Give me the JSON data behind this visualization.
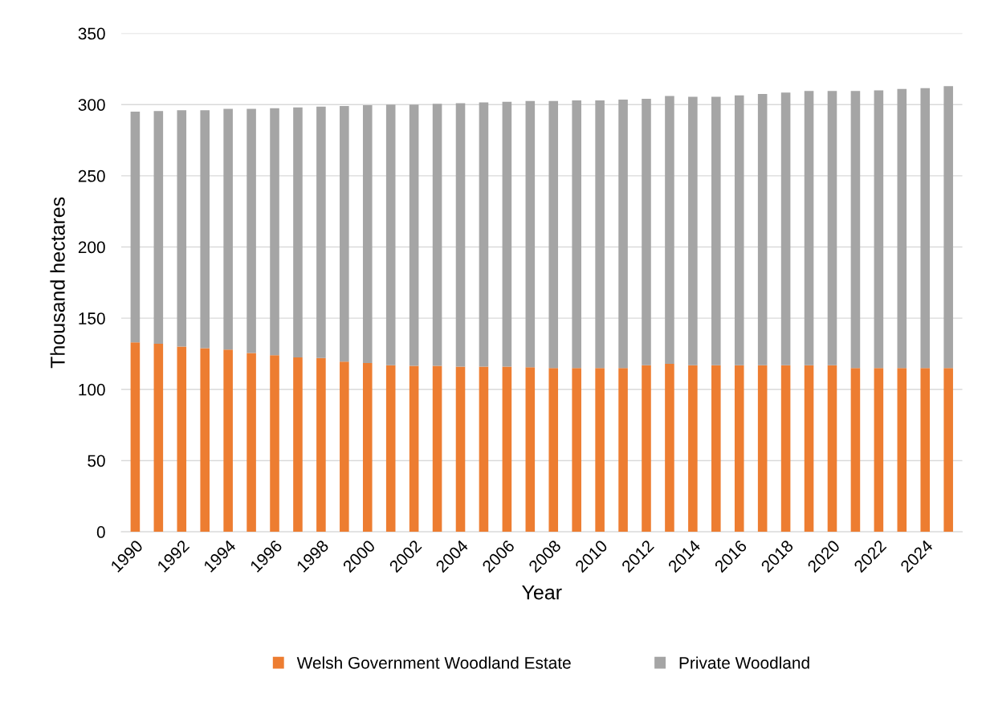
{
  "chart_data": {
    "type": "bar",
    "stacked": true,
    "xlabel": "Year",
    "ylabel": "Thousand hectares",
    "categories": [
      "1990",
      null,
      "1992",
      null,
      "1994",
      null,
      "1996",
      null,
      "1998",
      null,
      "2000",
      null,
      "2002",
      null,
      "2004",
      null,
      "2006",
      null,
      "2008",
      null,
      "2010",
      null,
      "2012",
      null,
      "2014",
      null,
      "2016",
      null,
      "2018",
      null,
      "2020",
      null,
      "2022",
      null,
      "2024",
      null
    ],
    "series": [
      {
        "name": "Welsh Government Woodland Estate",
        "color": "#ed7d31",
        "values": [
          133,
          132,
          130,
          129,
          128,
          125.5,
          124,
          122.5,
          122,
          119.5,
          118.5,
          117,
          116.5,
          116.5,
          116,
          116,
          116,
          115.5,
          115,
          115,
          115,
          115,
          117,
          118,
          117,
          117,
          117,
          117,
          117,
          117,
          117,
          115,
          115,
          115,
          115,
          115
        ]
      },
      {
        "name": "Private Woodland",
        "color": "#a5a5a5",
        "values": [
          162,
          163.5,
          166,
          167,
          169,
          171.5,
          173.5,
          175.5,
          176.5,
          179.5,
          181,
          183,
          183.5,
          184,
          185,
          185.5,
          186,
          187,
          187.5,
          188,
          188,
          188.5,
          187,
          188,
          188.5,
          188.5,
          189.5,
          190.5,
          191.5,
          192.5,
          192.5,
          194.5,
          195,
          196,
          196.5,
          198
        ]
      }
    ],
    "ylim": [
      0,
      350
    ],
    "yticks": [
      0,
      50,
      100,
      150,
      200,
      250,
      300,
      350
    ],
    "grid": "y",
    "legend": "bottom"
  }
}
